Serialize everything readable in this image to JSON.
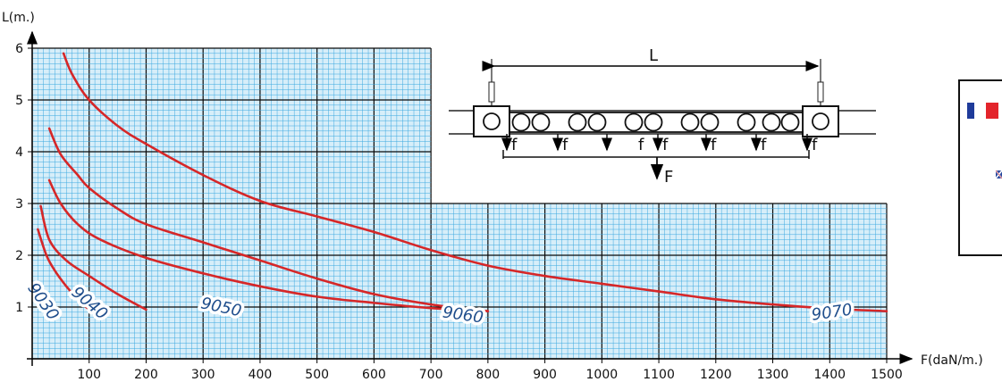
{
  "chart_data": {
    "type": "line",
    "xlabel": "F(daN/m.)",
    "ylabel": "L(m.)",
    "xlim": [
      0,
      1500
    ],
    "ylim": [
      0,
      6
    ],
    "x_ticks": [
      100,
      200,
      300,
      400,
      500,
      600,
      700,
      800,
      900,
      1000,
      1100,
      1200,
      1300,
      1400,
      1500
    ],
    "y_ticks": [
      1,
      2,
      3,
      4,
      5,
      6
    ],
    "grid": true,
    "series": [
      {
        "name": "9030",
        "color": "#d62728",
        "x": [
          10,
          25,
          40,
          60,
          80,
          100
        ],
        "y": [
          2.5,
          2.0,
          1.7,
          1.4,
          1.15,
          0.95
        ]
      },
      {
        "name": "9040",
        "color": "#d62728",
        "x": [
          15,
          30,
          60,
          100,
          150,
          200
        ],
        "y": [
          2.95,
          2.3,
          1.9,
          1.6,
          1.25,
          0.95
        ]
      },
      {
        "name": "9050",
        "color": "#d62728",
        "x": [
          30,
          50,
          80,
          120,
          200,
          300,
          400,
          500,
          600,
          700,
          800
        ],
        "y": [
          3.45,
          3.0,
          2.6,
          2.3,
          1.95,
          1.65,
          1.4,
          1.2,
          1.08,
          0.98,
          0.92
        ]
      },
      {
        "name": "9060",
        "color": "#d62728",
        "x": [
          30,
          50,
          80,
          100,
          150,
          200,
          300,
          400,
          500,
          600,
          700,
          800
        ],
        "y": [
          4.45,
          3.95,
          3.55,
          3.3,
          2.9,
          2.6,
          2.25,
          1.9,
          1.55,
          1.25,
          1.05,
          0.92
        ]
      },
      {
        "name": "9070",
        "color": "#d62728",
        "x": [
          55,
          70,
          100,
          150,
          200,
          300,
          400,
          500,
          600,
          700,
          800,
          900,
          1000,
          1100,
          1200,
          1300,
          1400,
          1500
        ],
        "y": [
          5.9,
          5.5,
          5.0,
          4.5,
          4.15,
          3.55,
          3.05,
          2.75,
          2.45,
          2.1,
          1.8,
          1.6,
          1.45,
          1.3,
          1.15,
          1.05,
          0.97,
          0.92
        ]
      }
    ],
    "labels": [
      "9030",
      "9040",
      "9050",
      "9060",
      "9070"
    ]
  },
  "diagram": {
    "span_label": "L",
    "point_load_label": "f",
    "total_load_label": "F"
  },
  "colors": {
    "grid_line": "#3aa8e0",
    "grid_major": "#0a0a0a",
    "curve": "#d62728",
    "curve_label": "#1f4e8c"
  }
}
